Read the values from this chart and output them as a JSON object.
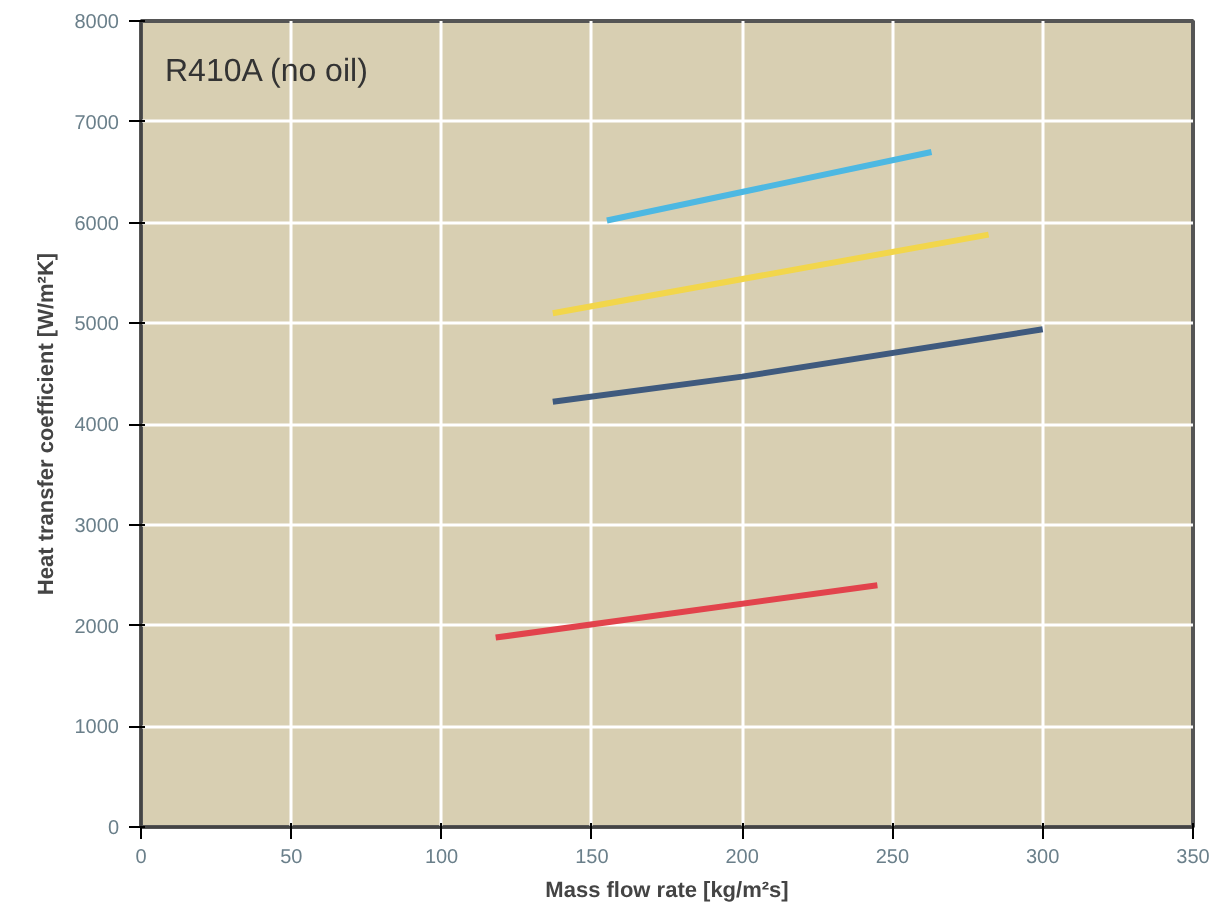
{
  "chart_data": {
    "type": "line",
    "title": "R410A (no oil)",
    "xlabel": "Mass flow rate [kg/m²s]",
    "ylabel": "Heat transfer coefficient [W/m²K]",
    "series": [
      {
        "color": "#4db8e2",
        "x": [
          155,
          263
        ],
        "values": [
          6020,
          6700
        ]
      },
      {
        "color": "#f2d64b",
        "x": [
          137,
          282
        ],
        "values": [
          5100,
          5880
        ]
      },
      {
        "color": "#3f5a7e",
        "x": [
          137,
          200,
          300
        ],
        "values": [
          4220,
          4470,
          4940
        ]
      },
      {
        "color": "#e2434c",
        "x": [
          118,
          245
        ],
        "values": [
          1880,
          2400
        ]
      }
    ],
    "xlim": [
      0,
      350
    ],
    "xticks": [
      0,
      50,
      100,
      150,
      200,
      250,
      300,
      350
    ],
    "ylim": [
      0,
      8000
    ],
    "yticks": [
      0,
      1000,
      2000,
      3000,
      4000,
      5000,
      6000,
      7000,
      8000
    ],
    "grid": true,
    "marker": "none",
    "line_style": "solid"
  }
}
